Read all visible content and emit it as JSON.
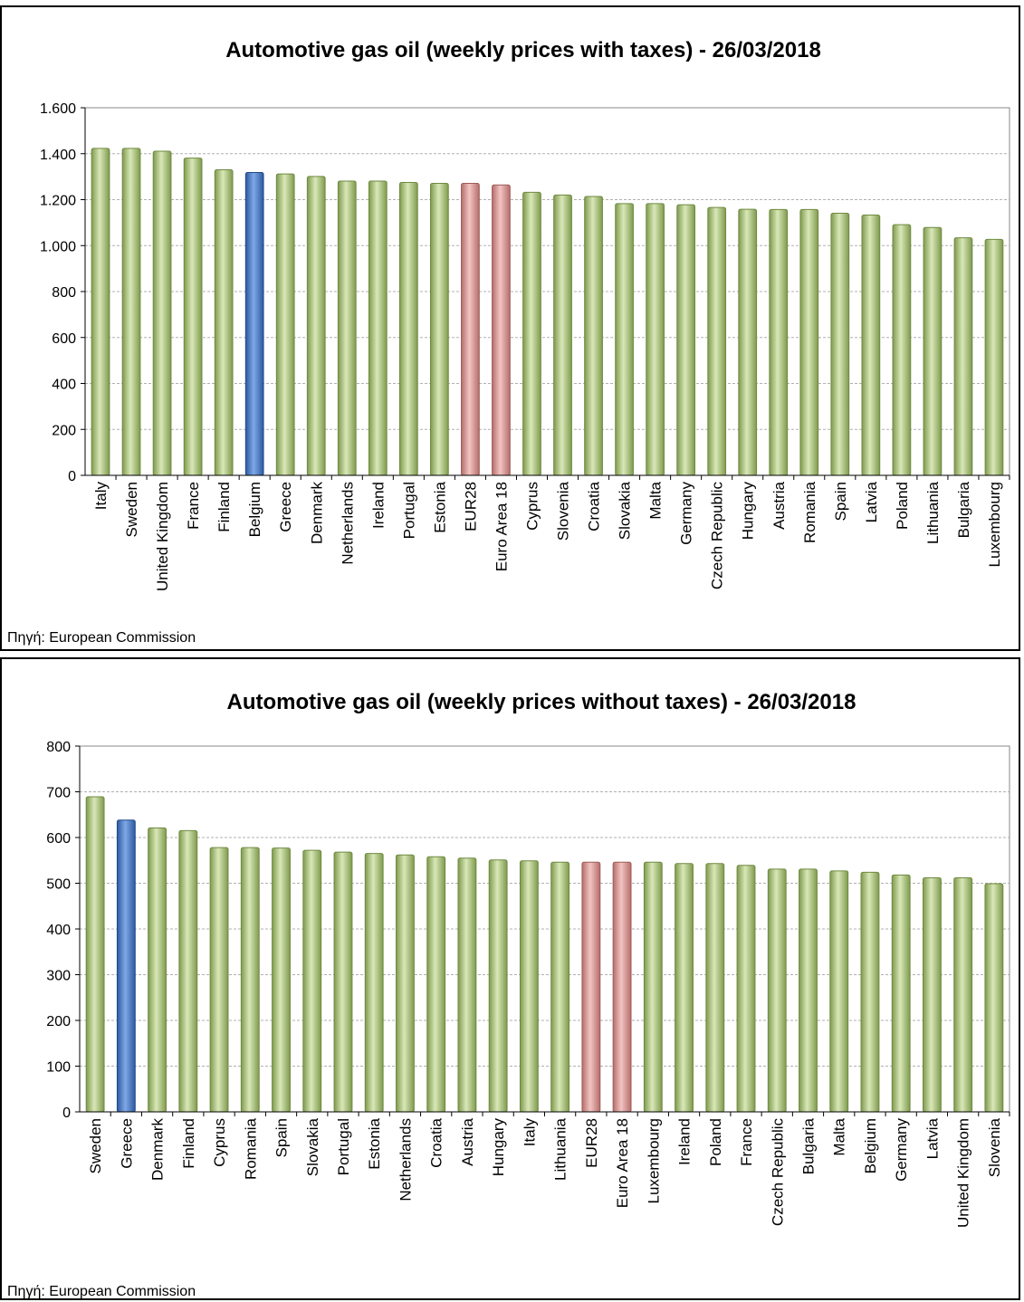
{
  "colors": {
    "default": "#a9c27a",
    "highlight": "#4f7fc7",
    "aggregate": "#d69a98"
  },
  "chart_data": [
    {
      "type": "bar",
      "title": "Automotive gas oil (weekly prices with taxes) - 26/03/2018",
      "source": "Πηγή: European Commission",
      "ylim": [
        0,
        1600
      ],
      "yticks": [
        0,
        200,
        400,
        600,
        800,
        1000,
        1200,
        1400,
        1600
      ],
      "ytick_labels": [
        "0",
        "200",
        "400",
        "600",
        "800",
        "1.000",
        "1.200",
        "1.400",
        "1.600"
      ],
      "grid": true,
      "categories": [
        "Italy",
        "Sweden",
        "United Kingdom",
        "France",
        "Finland",
        "Belgium",
        "Greece",
        "Denmark",
        "Netherlands",
        "Ireland",
        "Portugal",
        "Estonia",
        "EUR28",
        "Euro Area 18",
        "Cyprus",
        "Slovenia",
        "Croatia",
        "Slovakia",
        "Malta",
        "Germany",
        "Czech Republic",
        "Hungary",
        "Austria",
        "Romania",
        "Spain",
        "Latvia",
        "Poland",
        "Lithuania",
        "Bulgaria",
        "Luxembourg"
      ],
      "values": [
        1423,
        1423,
        1411,
        1381,
        1330,
        1318,
        1312,
        1301,
        1281,
        1281,
        1275,
        1271,
        1271,
        1264,
        1232,
        1220,
        1214,
        1183,
        1183,
        1178,
        1166,
        1158,
        1157,
        1157,
        1141,
        1133,
        1091,
        1079,
        1034,
        1027
      ],
      "highlight": [
        "Belgium"
      ],
      "aggregate": [
        "EUR28",
        "Euro Area 18"
      ]
    },
    {
      "type": "bar",
      "title": "Automotive gas oil (weekly prices without taxes) - 26/03/2018",
      "source": "Πηγή: European Commission",
      "ylim": [
        0,
        800
      ],
      "yticks": [
        0,
        100,
        200,
        300,
        400,
        500,
        600,
        700,
        800
      ],
      "ytick_labels": [
        "0",
        "100",
        "200",
        "300",
        "400",
        "500",
        "600",
        "700",
        "800"
      ],
      "grid": true,
      "categories": [
        "Sweden",
        "Greece",
        "Denmark",
        "Finland",
        "Cyprus",
        "Romania",
        "Spain",
        "Slovakia",
        "Portugal",
        "Estonia",
        "Netherlands",
        "Croatia",
        "Austria",
        "Hungary",
        "Italy",
        "Lithuania",
        "EUR28",
        "Euro Area 18",
        "Luxembourg",
        "Ireland",
        "Poland",
        "France",
        "Czech Republic",
        "Bulgaria",
        "Malta",
        "Belgium",
        "Germany",
        "Latvia",
        "United Kingdom",
        "Slovenia"
      ],
      "values": [
        689,
        638,
        621,
        615,
        578,
        578,
        577,
        572,
        568,
        565,
        562,
        558,
        555,
        551,
        549,
        546,
        546,
        546,
        546,
        543,
        543,
        539,
        531,
        531,
        527,
        524,
        518,
        512,
        512,
        499
      ],
      "highlight": [
        "Greece"
      ],
      "aggregate": [
        "EUR28",
        "Euro Area 18"
      ]
    }
  ]
}
